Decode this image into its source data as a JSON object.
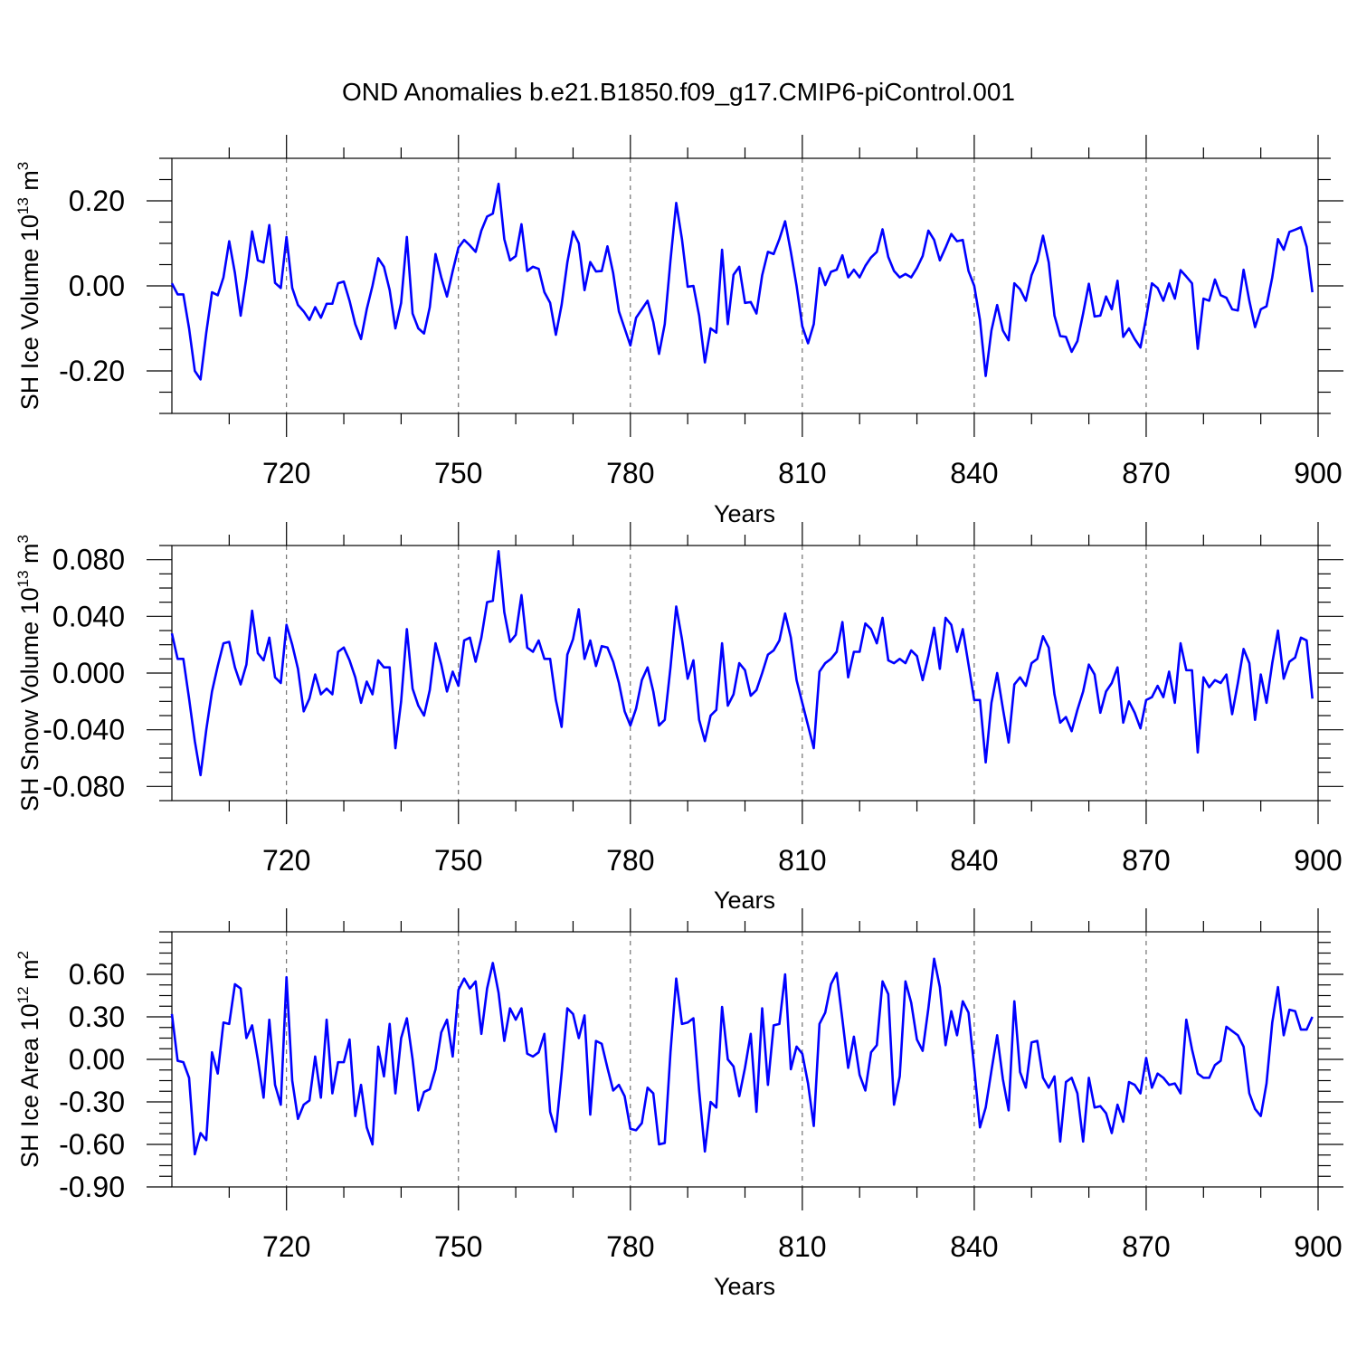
{
  "title": "OND Anomalies b.e21.B1850.f09_g17.CMIP6-piControl.001",
  "colors": {
    "line": "#0000ff",
    "frame": "#000000",
    "grid": "#555555"
  },
  "chart_data": [
    {
      "type": "line",
      "ylabel": {
        "main": "SH Ice Volume 10",
        "sup": "13",
        "unit": " m",
        "unit_sup": "3"
      },
      "xlabel": "Years",
      "xlim": [
        700,
        900
      ],
      "ylim": [
        -0.3,
        0.3
      ],
      "xticks": [
        "720",
        "750",
        "780",
        "810",
        "840",
        "870",
        "900"
      ],
      "yticks": [
        {
          "value": 0.2,
          "label": "0.20"
        },
        {
          "value": 0.0,
          "label": "0.00"
        },
        {
          "value": -0.2,
          "label": "-0.20"
        }
      ],
      "grid": "vertical dashed at major x ticks",
      "series": [
        {
          "x_start": 700,
          "values": [
            0.006,
            -0.02,
            -0.02,
            -0.1,
            -0.2,
            -0.22,
            -0.11,
            -0.015,
            -0.022,
            0.02,
            0.105,
            0.03,
            -0.07,
            0.02,
            0.128,
            0.06,
            0.055,
            0.143,
            0.007,
            -0.005,
            0.115,
            -0.005,
            -0.045,
            -0.06,
            -0.08,
            -0.05,
            -0.075,
            -0.042,
            -0.042,
            0.006,
            0.01,
            -0.035,
            -0.09,
            -0.125,
            -0.055,
            0.0,
            0.065,
            0.045,
            -0.01,
            -0.1,
            -0.04,
            0.115,
            -0.065,
            -0.1,
            -0.112,
            -0.05,
            0.075,
            0.02,
            -0.025,
            0.035,
            0.09,
            0.108,
            0.095,
            0.08,
            0.13,
            0.163,
            0.17,
            0.24,
            0.11,
            0.06,
            0.07,
            0.145,
            0.035,
            0.045,
            0.04,
            -0.015,
            -0.04,
            -0.115,
            -0.045,
            0.055,
            0.128,
            0.1,
            -0.01,
            0.056,
            0.034,
            0.035,
            0.093,
            0.03,
            -0.06,
            -0.1,
            -0.14,
            -0.075,
            -0.055,
            -0.035,
            -0.085,
            -0.16,
            -0.09,
            0.06,
            0.195,
            0.11,
            -0.002,
            0.0,
            -0.07,
            -0.18,
            -0.1,
            -0.11,
            0.085,
            -0.09,
            0.026,
            0.045,
            -0.04,
            -0.038,
            -0.065,
            0.025,
            0.08,
            0.075,
            0.11,
            0.152,
            0.08,
            0.0,
            -0.095,
            -0.135,
            -0.09,
            0.042,
            0.002,
            0.033,
            0.038,
            0.072,
            0.02,
            0.038,
            0.02,
            0.047,
            0.067,
            0.08,
            0.133,
            0.068,
            0.035,
            0.02,
            0.028,
            0.02,
            0.042,
            0.07,
            0.13,
            0.108,
            0.06,
            0.09,
            0.122,
            0.105,
            0.108,
            0.035,
            0.0,
            -0.08,
            -0.212,
            -0.105,
            -0.045,
            -0.105,
            -0.128,
            0.006,
            -0.008,
            -0.035,
            0.025,
            0.058,
            0.118,
            0.055,
            -0.07,
            -0.118,
            -0.12,
            -0.155,
            -0.13,
            -0.065,
            0.005,
            -0.072,
            -0.07,
            -0.025,
            -0.055,
            0.012,
            -0.12,
            -0.1,
            -0.125,
            -0.145,
            -0.075,
            0.006,
            -0.005,
            -0.035,
            0.006,
            -0.03,
            0.037,
            0.022,
            0.006,
            -0.148,
            -0.03,
            -0.035,
            0.015,
            -0.022,
            -0.028,
            -0.055,
            -0.058,
            0.038,
            -0.035,
            -0.097,
            -0.055,
            -0.048,
            0.02,
            0.11,
            0.085,
            0.127,
            0.132,
            0.138,
            0.092,
            -0.015
          ]
        }
      ]
    },
    {
      "type": "line",
      "ylabel": {
        "main": "SH Snow Volume 10",
        "sup": "13",
        "unit": " m",
        "unit_sup": "3"
      },
      "xlabel": "Years",
      "xlim": [
        700,
        900
      ],
      "ylim": [
        -0.09,
        0.09
      ],
      "xticks": [
        "720",
        "750",
        "780",
        "810",
        "840",
        "870",
        "900"
      ],
      "yticks": [
        {
          "value": 0.08,
          "label": "0.080"
        },
        {
          "value": 0.04,
          "label": "0.040"
        },
        {
          "value": 0.0,
          "label": "0.000"
        },
        {
          "value": -0.04,
          "label": "-0.040"
        },
        {
          "value": -0.08,
          "label": "-0.080"
        }
      ],
      "grid": "vertical dashed at major x ticks",
      "series": [
        {
          "x_start": 700,
          "values": [
            0.028,
            0.01,
            0.01,
            -0.018,
            -0.048,
            -0.072,
            -0.04,
            -0.013,
            0.005,
            0.021,
            0.022,
            0.004,
            -0.008,
            0.006,
            0.044,
            0.014,
            0.009,
            0.025,
            -0.003,
            -0.007,
            0.034,
            0.02,
            0.003,
            -0.027,
            -0.018,
            -0.001,
            -0.015,
            -0.011,
            -0.015,
            0.015,
            0.018,
            0.009,
            -0.003,
            -0.021,
            -0.006,
            -0.015,
            0.009,
            0.004,
            0.004,
            -0.053,
            -0.02,
            0.031,
            -0.011,
            -0.023,
            -0.03,
            -0.012,
            0.021,
            0.006,
            -0.013,
            0.001,
            -0.009,
            0.023,
            0.025,
            0.008,
            0.025,
            0.05,
            0.051,
            0.086,
            0.043,
            0.022,
            0.027,
            0.055,
            0.018,
            0.015,
            0.023,
            0.01,
            0.01,
            -0.019,
            -0.038,
            0.013,
            0.024,
            0.045,
            0.01,
            0.023,
            0.005,
            0.019,
            0.018,
            0.008,
            -0.007,
            -0.027,
            -0.037,
            -0.025,
            -0.005,
            0.004,
            -0.013,
            -0.037,
            -0.033,
            0.004,
            0.047,
            0.024,
            -0.004,
            0.009,
            -0.033,
            -0.048,
            -0.03,
            -0.026,
            0.021,
            -0.023,
            -0.015,
            0.007,
            0.002,
            -0.016,
            -0.012,
            0.0,
            0.013,
            0.016,
            0.023,
            0.042,
            0.025,
            -0.005,
            -0.021,
            -0.037,
            -0.053,
            0.001,
            0.007,
            0.01,
            0.015,
            0.036,
            -0.003,
            0.015,
            0.015,
            0.035,
            0.031,
            0.021,
            0.039,
            0.009,
            0.007,
            0.01,
            0.007,
            0.016,
            0.012,
            -0.005,
            0.012,
            0.032,
            0.003,
            0.039,
            0.034,
            0.015,
            0.031,
            0.006,
            -0.019,
            -0.019,
            -0.063,
            -0.021,
            0.0,
            -0.025,
            -0.049,
            -0.008,
            -0.003,
            -0.009,
            0.007,
            0.01,
            0.026,
            0.018,
            -0.015,
            -0.035,
            -0.031,
            -0.041,
            -0.026,
            -0.013,
            0.006,
            -0.001,
            -0.028,
            -0.013,
            -0.007,
            0.004,
            -0.035,
            -0.02,
            -0.028,
            -0.039,
            -0.019,
            -0.017,
            -0.009,
            -0.017,
            0.001,
            -0.021,
            0.021,
            0.002,
            0.002,
            -0.056,
            -0.003,
            -0.01,
            -0.005,
            -0.007,
            -0.001,
            -0.029,
            -0.007,
            0.017,
            0.007,
            -0.033,
            -0.001,
            -0.021,
            0.007,
            0.03,
            -0.004,
            0.008,
            0.011,
            0.025,
            0.023,
            -0.018
          ]
        }
      ]
    },
    {
      "type": "line",
      "ylabel": {
        "main": "SH Ice Area 10",
        "sup": "12",
        "unit": " m",
        "unit_sup": "2"
      },
      "xlabel": "Years",
      "xlim": [
        700,
        900
      ],
      "ylim": [
        -0.9,
        0.9
      ],
      "xticks": [
        "720",
        "750",
        "780",
        "810",
        "840",
        "870",
        "900"
      ],
      "yticks": [
        {
          "value": 0.6,
          "label": "0.60"
        },
        {
          "value": 0.3,
          "label": "0.30"
        },
        {
          "value": 0.0,
          "label": "0.00"
        },
        {
          "value": -0.3,
          "label": "-0.30"
        },
        {
          "value": -0.6,
          "label": "-0.60"
        },
        {
          "value": -0.9,
          "label": "-0.90"
        }
      ],
      "grid": "vertical dashed at major x ticks",
      "series": [
        {
          "x_start": 700,
          "values": [
            0.32,
            -0.01,
            -0.02,
            -0.13,
            -0.67,
            -0.52,
            -0.57,
            0.05,
            -0.1,
            0.26,
            0.25,
            0.53,
            0.5,
            0.15,
            0.24,
            0.0,
            -0.27,
            0.28,
            -0.18,
            -0.32,
            0.58,
            -0.15,
            -0.42,
            -0.32,
            -0.29,
            0.02,
            -0.27,
            0.28,
            -0.24,
            -0.02,
            -0.02,
            0.14,
            -0.4,
            -0.18,
            -0.48,
            -0.6,
            0.09,
            -0.12,
            0.25,
            -0.24,
            0.15,
            0.29,
            0.0,
            -0.36,
            -0.23,
            -0.21,
            -0.07,
            0.19,
            0.28,
            0.02,
            0.49,
            0.57,
            0.5,
            0.55,
            0.18,
            0.5,
            0.68,
            0.47,
            0.13,
            0.36,
            0.28,
            0.36,
            0.04,
            0.02,
            0.05,
            0.18,
            -0.37,
            -0.51,
            -0.1,
            0.36,
            0.32,
            0.15,
            0.31,
            -0.39,
            0.13,
            0.11,
            -0.06,
            -0.22,
            -0.18,
            -0.26,
            -0.49,
            -0.5,
            -0.45,
            -0.2,
            -0.24,
            -0.6,
            -0.59,
            0.05,
            0.57,
            0.25,
            0.26,
            0.29,
            -0.22,
            -0.65,
            -0.3,
            -0.34,
            0.37,
            0.0,
            -0.05,
            -0.26,
            -0.06,
            0.18,
            -0.37,
            0.36,
            -0.18,
            0.24,
            0.25,
            0.6,
            -0.07,
            0.09,
            0.04,
            -0.17,
            -0.47,
            0.25,
            0.33,
            0.53,
            0.61,
            0.28,
            -0.06,
            0.16,
            -0.11,
            -0.22,
            0.05,
            0.1,
            0.55,
            0.46,
            -0.32,
            -0.12,
            0.55,
            0.4,
            0.14,
            0.06,
            0.36,
            0.71,
            0.51,
            0.1,
            0.34,
            0.17,
            0.41,
            0.33,
            -0.06,
            -0.48,
            -0.34,
            -0.08,
            0.17,
            -0.14,
            -0.36,
            0.41,
            -0.09,
            -0.2,
            0.12,
            0.13,
            -0.13,
            -0.2,
            -0.12,
            -0.58,
            -0.16,
            -0.13,
            -0.24,
            -0.58,
            -0.13,
            -0.34,
            -0.33,
            -0.38,
            -0.52,
            -0.32,
            -0.44,
            -0.16,
            -0.18,
            -0.24,
            0.01,
            -0.2,
            -0.1,
            -0.13,
            -0.18,
            -0.17,
            -0.24,
            0.28,
            0.07,
            -0.1,
            -0.13,
            -0.13,
            -0.04,
            -0.01,
            0.23,
            0.2,
            0.17,
            0.09,
            -0.24,
            -0.35,
            -0.4,
            -0.17,
            0.26,
            0.51,
            0.17,
            0.35,
            0.34,
            0.21,
            0.21,
            0.3
          ]
        }
      ]
    }
  ]
}
